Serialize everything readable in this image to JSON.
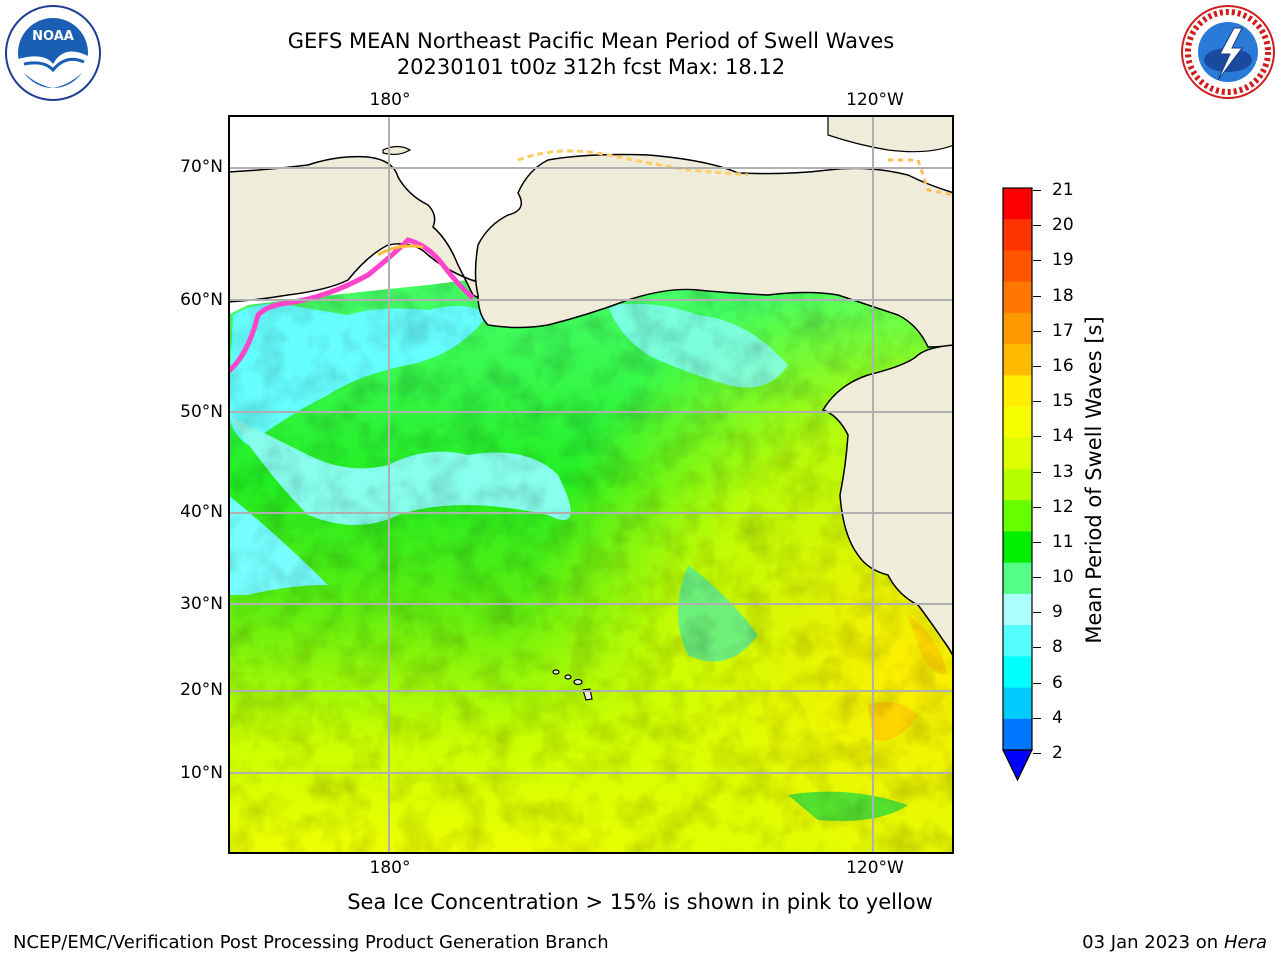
{
  "header": {
    "title_line1": "GEFS MEAN Northeast Pacific Mean Period of Swell Waves",
    "title_line2": "20230101 t00z 312h fcst   Max: 18.12"
  },
  "logos": {
    "noaa": {
      "text": "NOAA",
      "ring_text": "NATIONAL OCEANIC AND ATMOSPHERIC ADMINISTRATION · U.S. DEPARTMENT OF COMMERCE"
    },
    "nws": {
      "ring_text": "NATIONAL WEATHER SERVICE"
    }
  },
  "map": {
    "lon_labels": [
      "180°",
      "120°W"
    ],
    "lat_labels": [
      "70°N",
      "60°N",
      "50°N",
      "40°N",
      "30°N",
      "20°N",
      "10°N"
    ],
    "colors": {
      "land": "#efedda",
      "grid": "#b0b0b0",
      "coast": "#000000",
      "sea_ice": "#ff4fc0"
    }
  },
  "colorbar": {
    "label": "Mean Period of Swell Waves [s]",
    "ticks": [
      "21",
      "20",
      "19",
      "18",
      "17",
      "16",
      "15",
      "14",
      "13",
      "12",
      "11",
      "10",
      "9",
      "8",
      "6",
      "4",
      "2"
    ],
    "colors_top_to_bottom": [
      "#ff0000",
      "#ff3300",
      "#ff5500",
      "#ff7700",
      "#ff9900",
      "#ffbb00",
      "#ffee00",
      "#f5ff00",
      "#ddff00",
      "#b6ff00",
      "#66ff00",
      "#00ee00",
      "#55ff88",
      "#aaffff",
      "#55ffff",
      "#00ffff",
      "#00ccff",
      "#0077ff"
    ],
    "under_color": "#0000ff"
  },
  "caption": "Sea Ice Concentration > 15% is shown in pink to yellow",
  "footer": {
    "left": "NCEP/EMC/Verification Post Processing Product Generation Branch",
    "right_prefix": "03 Jan 2023 on ",
    "right_host": "Hera"
  }
}
